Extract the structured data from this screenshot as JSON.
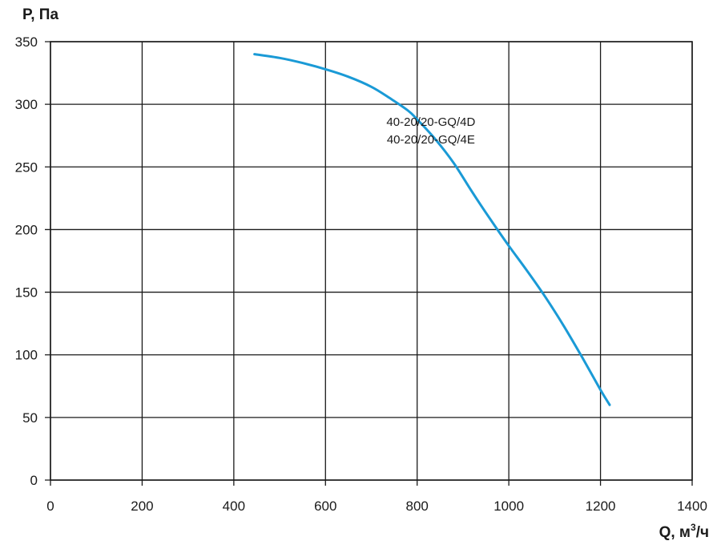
{
  "chart_data": {
    "type": "line",
    "title": "",
    "xlabel": "Q, м",
    "xlabel_sup": "3",
    "xlabel_suffix": "/ч",
    "ylabel": "P, Па",
    "xlim": [
      0,
      1400
    ],
    "ylim": [
      0,
      350
    ],
    "xticks": [
      0,
      200,
      400,
      600,
      800,
      1000,
      1200,
      1400
    ],
    "yticks": [
      0,
      50,
      100,
      150,
      200,
      250,
      300,
      350
    ],
    "grid": true,
    "series": [
      {
        "name": "",
        "color": "#1a9ad6",
        "x": [
          445,
          500,
          550,
          600,
          650,
          700,
          740,
          780,
          800,
          840,
          880,
          920,
          960,
          1000,
          1040,
          1080,
          1120,
          1160,
          1200,
          1220
        ],
        "y": [
          340,
          337,
          333,
          328,
          322,
          314,
          305,
          295,
          288,
          272,
          253,
          230,
          208,
          187,
          167,
          146,
          123,
          98,
          72,
          60
        ]
      }
    ],
    "annotations": [
      {
        "text": "40-20/20-GQ/4D",
        "x": 830,
        "y": 286
      },
      {
        "text": "40-20/20-GQ/4E",
        "x": 830,
        "y": 272
      }
    ]
  }
}
